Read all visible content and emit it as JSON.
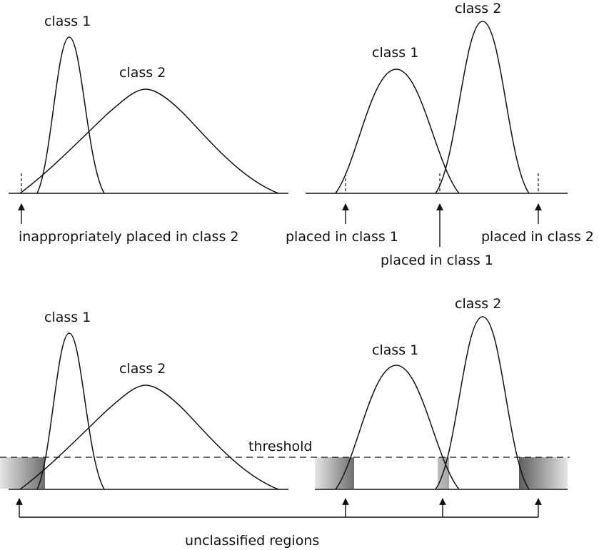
{
  "labels": {
    "tl_class1": "class 1",
    "tl_class2": "class 2",
    "tl_arrow_caption": "inappropriately placed in class 2",
    "tr_class1": "class 1",
    "tr_class2": "class 2",
    "tr_left_caption": "placed in class 1",
    "tr_mid_caption": "placed in class 1",
    "tr_right_caption": "placed in class 2",
    "bl_class1": "class 1",
    "bl_class2": "class 2",
    "threshold": "threshold",
    "br_class1": "class 1",
    "br_class2": "class 2",
    "unclassified": "unclassified regions"
  }
}
